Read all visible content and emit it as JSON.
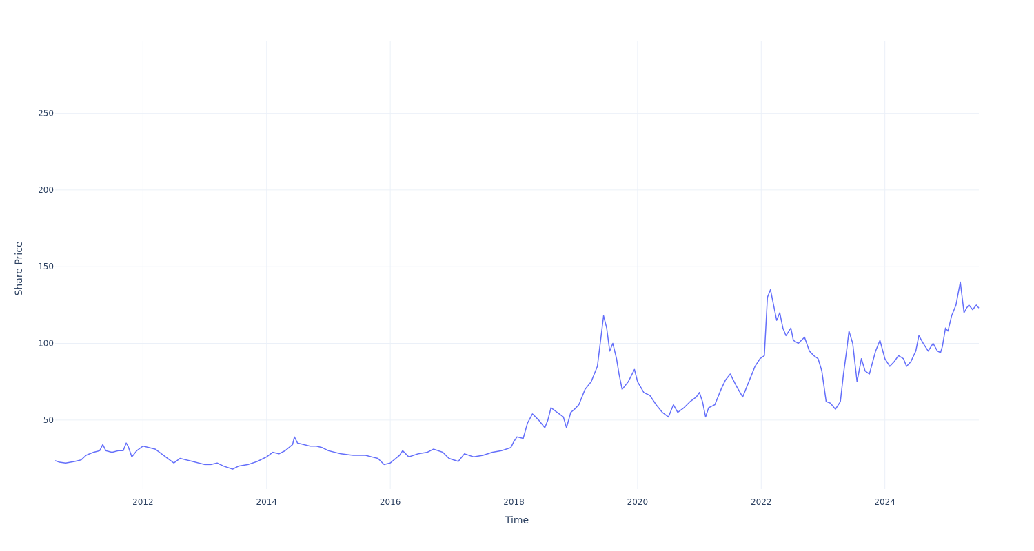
{
  "chart_data": {
    "type": "line",
    "title": "",
    "xlabel": "Time",
    "ylabel": "Share Price",
    "xlim": [
      2010.58,
      2025.52
    ],
    "ylim": [
      5,
      297
    ],
    "grid": true,
    "legend": "none",
    "colors": {
      "series": "#636efa",
      "grid": "#ebf0f8",
      "text": "#2a3f5f"
    },
    "x_ticks": [
      {
        "value": 2012,
        "label": "2012"
      },
      {
        "value": 2014,
        "label": "2014"
      },
      {
        "value": 2016,
        "label": "2016"
      },
      {
        "value": 2018,
        "label": "2018"
      },
      {
        "value": 2020,
        "label": "2020"
      },
      {
        "value": 2022,
        "label": "2022"
      },
      {
        "value": 2024,
        "label": "2024"
      }
    ],
    "y_ticks": [
      {
        "value": 50,
        "label": "50"
      },
      {
        "value": 100,
        "label": "100"
      },
      {
        "value": 150,
        "label": "150"
      },
      {
        "value": 200,
        "label": "200"
      },
      {
        "value": 250,
        "label": "250"
      }
    ],
    "series": [
      {
        "points": [
          [
            2010.58,
            23.5
          ],
          [
            2010.65,
            22.5
          ],
          [
            2010.75,
            22
          ],
          [
            2010.9,
            23
          ],
          [
            2011.0,
            24
          ],
          [
            2011.08,
            27
          ],
          [
            2011.2,
            29
          ],
          [
            2011.3,
            30
          ],
          [
            2011.35,
            34
          ],
          [
            2011.4,
            30
          ],
          [
            2011.5,
            29
          ],
          [
            2011.6,
            30
          ],
          [
            2011.68,
            30
          ],
          [
            2011.73,
            35
          ],
          [
            2011.76,
            33
          ],
          [
            2011.82,
            26
          ],
          [
            2011.9,
            30
          ],
          [
            2012.0,
            33
          ],
          [
            2012.1,
            32
          ],
          [
            2012.2,
            31
          ],
          [
            2012.3,
            28
          ],
          [
            2012.4,
            25
          ],
          [
            2012.5,
            22
          ],
          [
            2012.6,
            25
          ],
          [
            2012.7,
            24
          ],
          [
            2012.8,
            23
          ],
          [
            2012.9,
            22
          ],
          [
            2013.0,
            21
          ],
          [
            2013.1,
            21
          ],
          [
            2013.2,
            22
          ],
          [
            2013.3,
            20
          ],
          [
            2013.45,
            18
          ],
          [
            2013.55,
            20
          ],
          [
            2013.7,
            21
          ],
          [
            2013.85,
            23
          ],
          [
            2014.0,
            26
          ],
          [
            2014.1,
            29
          ],
          [
            2014.2,
            28
          ],
          [
            2014.3,
            30
          ],
          [
            2014.42,
            34
          ],
          [
            2014.45,
            39
          ],
          [
            2014.5,
            35
          ],
          [
            2014.6,
            34
          ],
          [
            2014.7,
            33
          ],
          [
            2014.8,
            33
          ],
          [
            2014.9,
            32
          ],
          [
            2015.0,
            30
          ],
          [
            2015.2,
            28
          ],
          [
            2015.4,
            27
          ],
          [
            2015.6,
            27
          ],
          [
            2015.7,
            26
          ],
          [
            2015.8,
            25
          ],
          [
            2015.9,
            21
          ],
          [
            2016.0,
            22
          ],
          [
            2016.15,
            27
          ],
          [
            2016.2,
            30
          ],
          [
            2016.3,
            26
          ],
          [
            2016.45,
            28
          ],
          [
            2016.6,
            29
          ],
          [
            2016.7,
            31
          ],
          [
            2016.85,
            29
          ],
          [
            2016.95,
            25
          ],
          [
            2017.1,
            23
          ],
          [
            2017.2,
            28
          ],
          [
            2017.35,
            26
          ],
          [
            2017.5,
            27
          ],
          [
            2017.65,
            29
          ],
          [
            2017.8,
            30
          ],
          [
            2017.95,
            32
          ],
          [
            2018.0,
            36
          ],
          [
            2018.05,
            39
          ],
          [
            2018.15,
            38
          ],
          [
            2018.22,
            48
          ],
          [
            2018.3,
            54
          ],
          [
            2018.4,
            50
          ],
          [
            2018.5,
            45
          ],
          [
            2018.55,
            50
          ],
          [
            2018.6,
            58
          ],
          [
            2018.7,
            55
          ],
          [
            2018.8,
            52
          ],
          [
            2018.85,
            45
          ],
          [
            2018.92,
            55
          ],
          [
            2018.98,
            57
          ],
          [
            2019.05,
            60
          ],
          [
            2019.15,
            70
          ],
          [
            2019.25,
            75
          ],
          [
            2019.35,
            85
          ],
          [
            2019.42,
            108
          ],
          [
            2019.45,
            118
          ],
          [
            2019.5,
            110
          ],
          [
            2019.55,
            95
          ],
          [
            2019.6,
            100
          ],
          [
            2019.66,
            90
          ],
          [
            2019.7,
            80
          ],
          [
            2019.75,
            70
          ],
          [
            2019.85,
            75
          ],
          [
            2019.95,
            83
          ],
          [
            2020.0,
            75
          ],
          [
            2020.1,
            68
          ],
          [
            2020.2,
            66
          ],
          [
            2020.3,
            60
          ],
          [
            2020.4,
            55
          ],
          [
            2020.5,
            52
          ],
          [
            2020.58,
            60
          ],
          [
            2020.65,
            55
          ],
          [
            2020.75,
            58
          ],
          [
            2020.85,
            62
          ],
          [
            2020.95,
            65
          ],
          [
            2021.0,
            68
          ],
          [
            2021.05,
            62
          ],
          [
            2021.1,
            52
          ],
          [
            2021.15,
            58
          ],
          [
            2021.25,
            60
          ],
          [
            2021.35,
            70
          ],
          [
            2021.42,
            76
          ],
          [
            2021.5,
            80
          ],
          [
            2021.6,
            72
          ],
          [
            2021.7,
            65
          ],
          [
            2021.8,
            75
          ],
          [
            2021.9,
            85
          ],
          [
            2021.98,
            90
          ],
          [
            2022.05,
            92
          ],
          [
            2022.1,
            130
          ],
          [
            2022.15,
            135
          ],
          [
            2022.2,
            125
          ],
          [
            2022.25,
            115
          ],
          [
            2022.3,
            120
          ],
          [
            2022.35,
            110
          ],
          [
            2022.4,
            105
          ],
          [
            2022.48,
            110
          ],
          [
            2022.52,
            102
          ],
          [
            2022.6,
            100
          ],
          [
            2022.7,
            104
          ],
          [
            2022.78,
            95
          ],
          [
            2022.85,
            92
          ],
          [
            2022.92,
            90
          ],
          [
            2022.98,
            82
          ],
          [
            2023.05,
            62
          ],
          [
            2023.12,
            61
          ],
          [
            2023.2,
            57
          ],
          [
            2023.28,
            62
          ],
          [
            2023.33,
            80
          ],
          [
            2023.38,
            95
          ],
          [
            2023.42,
            108
          ],
          [
            2023.48,
            100
          ],
          [
            2023.55,
            75
          ],
          [
            2023.62,
            90
          ],
          [
            2023.68,
            82
          ],
          [
            2023.75,
            80
          ],
          [
            2023.85,
            95
          ],
          [
            2023.92,
            102
          ],
          [
            2024.0,
            90
          ],
          [
            2024.08,
            85
          ],
          [
            2024.15,
            88
          ],
          [
            2024.22,
            92
          ],
          [
            2024.3,
            90
          ],
          [
            2024.35,
            85
          ],
          [
            2024.42,
            88
          ],
          [
            2024.5,
            95
          ],
          [
            2024.55,
            105
          ],
          [
            2024.62,
            100
          ],
          [
            2024.7,
            95
          ],
          [
            2024.78,
            100
          ],
          [
            2024.85,
            95
          ],
          [
            2024.9,
            94
          ],
          [
            2024.93,
            98
          ],
          [
            2024.98,
            110
          ],
          [
            2025.02,
            108
          ],
          [
            2025.08,
            118
          ],
          [
            2025.15,
            125
          ],
          [
            2025.22,
            140
          ],
          [
            2025.28,
            120
          ],
          [
            2025.32,
            123
          ],
          [
            2025.36,
            125
          ],
          [
            2025.42,
            122
          ],
          [
            2025.48,
            125
          ],
          [
            2025.52,
            123
          ]
        ]
      }
    ]
  }
}
